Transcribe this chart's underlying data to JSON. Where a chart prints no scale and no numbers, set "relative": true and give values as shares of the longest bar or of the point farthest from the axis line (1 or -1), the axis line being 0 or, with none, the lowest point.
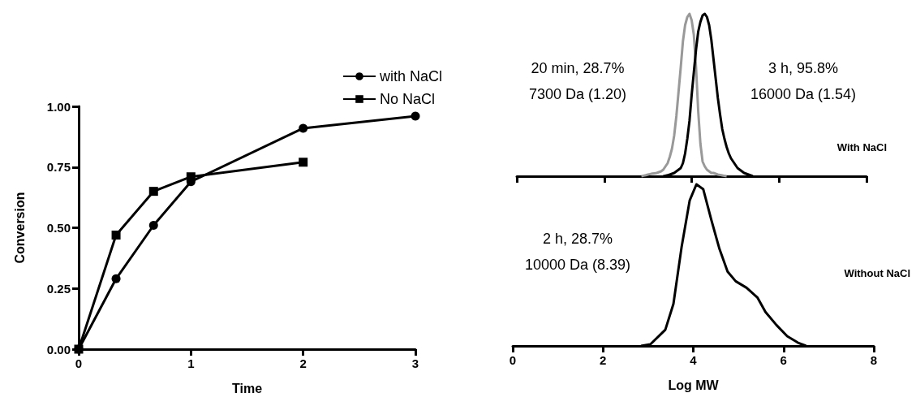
{
  "chart_data": [
    {
      "type": "line",
      "xlabel": "Time",
      "ylabel": "Conversion",
      "xlim": [
        0,
        3
      ],
      "xticks": [
        0,
        1,
        2,
        3
      ],
      "ylim": [
        0,
        1
      ],
      "yticks": [
        {
          "value": 0,
          "label": "0.00"
        },
        {
          "value": 0.25,
          "label": "0.25"
        },
        {
          "value": 0.5,
          "label": "0.50"
        },
        {
          "value": 0.75,
          "label": "0.75"
        },
        {
          "value": 1,
          "label": "1.00"
        }
      ],
      "legend": "top right",
      "series": [
        {
          "name": "with NaCl",
          "color": "#000000",
          "marker": "circle",
          "x": [
            0,
            0.333,
            0.667,
            1,
            2,
            3
          ],
          "values": [
            0,
            0.29,
            0.51,
            0.69,
            0.91,
            0.96
          ]
        },
        {
          "name": "No NaCl",
          "color": "#000000",
          "marker": "square",
          "x": [
            0,
            0.333,
            0.667,
            1,
            2
          ],
          "values": [
            0,
            0.47,
            0.65,
            0.71,
            0.77
          ]
        }
      ]
    },
    {
      "type": "line",
      "title": "With NaCl",
      "relative": true,
      "tick_labels": false,
      "categories": [
        null,
        null,
        null,
        null,
        null,
        null,
        null,
        null,
        null,
        null,
        null,
        null,
        null,
        null,
        null,
        null,
        null,
        null,
        null,
        null,
        null,
        null,
        null,
        null,
        null,
        null,
        null,
        null,
        null,
        null,
        null,
        null,
        null,
        null,
        null,
        null,
        null,
        null,
        null,
        null,
        null,
        null,
        null,
        null,
        null,
        null,
        null,
        null,
        null,
        null,
        null,
        null,
        null,
        null,
        null,
        null,
        null,
        null,
        null,
        null,
        null,
        null,
        null,
        null,
        null,
        null,
        null,
        null,
        null,
        null,
        null,
        null,
        null,
        null,
        null,
        null,
        null,
        null,
        null,
        null,
        null,
        null,
        null,
        null,
        null,
        null,
        null,
        null,
        null,
        null,
        null,
        null,
        null,
        null,
        null,
        null,
        null,
        null,
        null,
        null,
        null,
        null,
        null,
        null,
        null,
        null,
        null,
        null,
        null,
        null,
        null,
        null,
        null,
        null,
        null,
        null,
        null,
        null,
        null,
        null,
        null,
        null,
        null,
        null,
        null,
        null,
        null,
        null,
        null,
        null,
        null,
        null,
        null,
        null,
        null,
        null,
        null,
        null,
        null,
        null,
        null,
        null,
        null,
        null,
        null,
        null,
        null,
        null,
        null,
        null,
        null,
        null,
        null,
        null,
        null,
        null,
        null,
        null,
        null,
        null,
        null
      ],
      "annotations": [
        "20 min, 28.7%\n7300 Da (1.20)",
        "3 h, 95.8%\n16000 Da (1.54)"
      ],
      "series": [
        {
          "color": "#999999",
          "values": [
            null,
            null,
            null,
            null,
            null,
            null,
            null,
            null,
            null,
            null,
            null,
            null,
            null,
            null,
            null,
            null,
            null,
            null,
            null,
            null,
            null,
            null,
            null,
            null,
            null,
            null,
            null,
            null,
            null,
            null,
            null,
            null,
            null,
            null,
            null,
            null,
            null,
            null,
            null,
            null,
            null,
            null,
            null,
            null,
            null,
            null,
            null,
            null,
            null,
            null,
            null,
            null,
            null,
            null,
            null,
            null,
            null,
            0,
            0.003,
            0.006,
            0.01,
            0.013,
            0.016,
            0.018,
            0.02,
            0.025,
            0.03,
            0.04,
            0.06,
            0.08,
            0.12,
            0.17,
            0.25,
            0.37,
            0.52,
            0.67,
            0.83,
            0.93,
            0.98,
            1,
            0.96,
            0.87,
            0.67,
            0.4,
            0.2,
            0.09,
            0.06,
            0.04,
            0.03,
            0.02,
            0.02,
            0.015,
            0.01,
            0.008,
            0.005,
            0.002,
            0,
            null,
            null,
            null,
            null,
            null,
            null,
            null,
            null,
            null,
            null,
            null,
            null,
            null,
            null,
            null,
            null,
            null,
            null,
            null,
            null,
            null,
            null,
            null,
            null,
            null,
            null,
            null,
            null,
            null,
            null,
            null,
            null,
            null,
            null,
            null,
            null,
            null,
            null,
            null,
            null,
            null,
            null,
            null,
            null,
            null,
            null,
            null,
            null,
            null,
            null,
            null,
            null,
            null,
            null,
            null,
            null,
            null,
            null,
            null,
            null,
            null,
            null,
            null,
            null
          ]
        },
        {
          "color": "#000000",
          "values": [
            null,
            null,
            null,
            null,
            null,
            null,
            null,
            null,
            null,
            null,
            null,
            null,
            null,
            null,
            null,
            null,
            null,
            null,
            null,
            null,
            null,
            null,
            null,
            null,
            null,
            null,
            null,
            null,
            null,
            null,
            null,
            null,
            null,
            null,
            null,
            null,
            null,
            null,
            null,
            null,
            null,
            null,
            null,
            null,
            null,
            null,
            null,
            null,
            null,
            null,
            null,
            null,
            null,
            null,
            null,
            null,
            null,
            null,
            null,
            null,
            null,
            null,
            null,
            null,
            null,
            null,
            null,
            0,
            0.003,
            0.006,
            0.01,
            0.015,
            0.02,
            0.03,
            0.04,
            0.05,
            0.08,
            0.14,
            0.23,
            0.34,
            0.5,
            0.64,
            0.78,
            0.89,
            0.95,
            0.99,
            1,
            0.98,
            0.93,
            0.84,
            0.72,
            0.6,
            0.48,
            0.38,
            0.29,
            0.23,
            0.18,
            0.14,
            0.11,
            0.09,
            0.07,
            0.05,
            0.04,
            0.03,
            0.02,
            0.015,
            0.01,
            0.005,
            0,
            null,
            null,
            null,
            null,
            null,
            null,
            null,
            null,
            null,
            null,
            null,
            null,
            null,
            null,
            null,
            null,
            null,
            null,
            null,
            null,
            null,
            null,
            null,
            null,
            null,
            null,
            null,
            null,
            null,
            null,
            null,
            null,
            null,
            null,
            null,
            null,
            null,
            null,
            null,
            null,
            null,
            null,
            null,
            null,
            null,
            null,
            null,
            null,
            null,
            null,
            null,
            null
          ]
        }
      ]
    },
    {
      "type": "line",
      "title": "Without NaCl",
      "relative": true,
      "xlabel": "Log MW",
      "xlim": [
        0,
        8
      ],
      "xticks": [
        0,
        2,
        4,
        6,
        8
      ],
      "tick_labels": "x",
      "annotations": [
        "2 h, 28.7%\n10000 Da (8.39)"
      ],
      "series": [
        {
          "color": "#000000",
          "x": [
            2.84,
            3.05,
            3.38,
            3.56,
            3.74,
            3.92,
            4.07,
            4.22,
            4.4,
            4.58,
            4.76,
            4.94,
            5.18,
            5.42,
            5.6,
            5.84,
            6.08,
            6.32,
            6.5
          ],
          "values": [
            0,
            0.01,
            0.1,
            0.26,
            0.61,
            0.9,
            1,
            0.97,
            0.78,
            0.6,
            0.46,
            0.4,
            0.36,
            0.3,
            0.21,
            0.13,
            0.06,
            0.02,
            0
          ]
        }
      ]
    }
  ]
}
